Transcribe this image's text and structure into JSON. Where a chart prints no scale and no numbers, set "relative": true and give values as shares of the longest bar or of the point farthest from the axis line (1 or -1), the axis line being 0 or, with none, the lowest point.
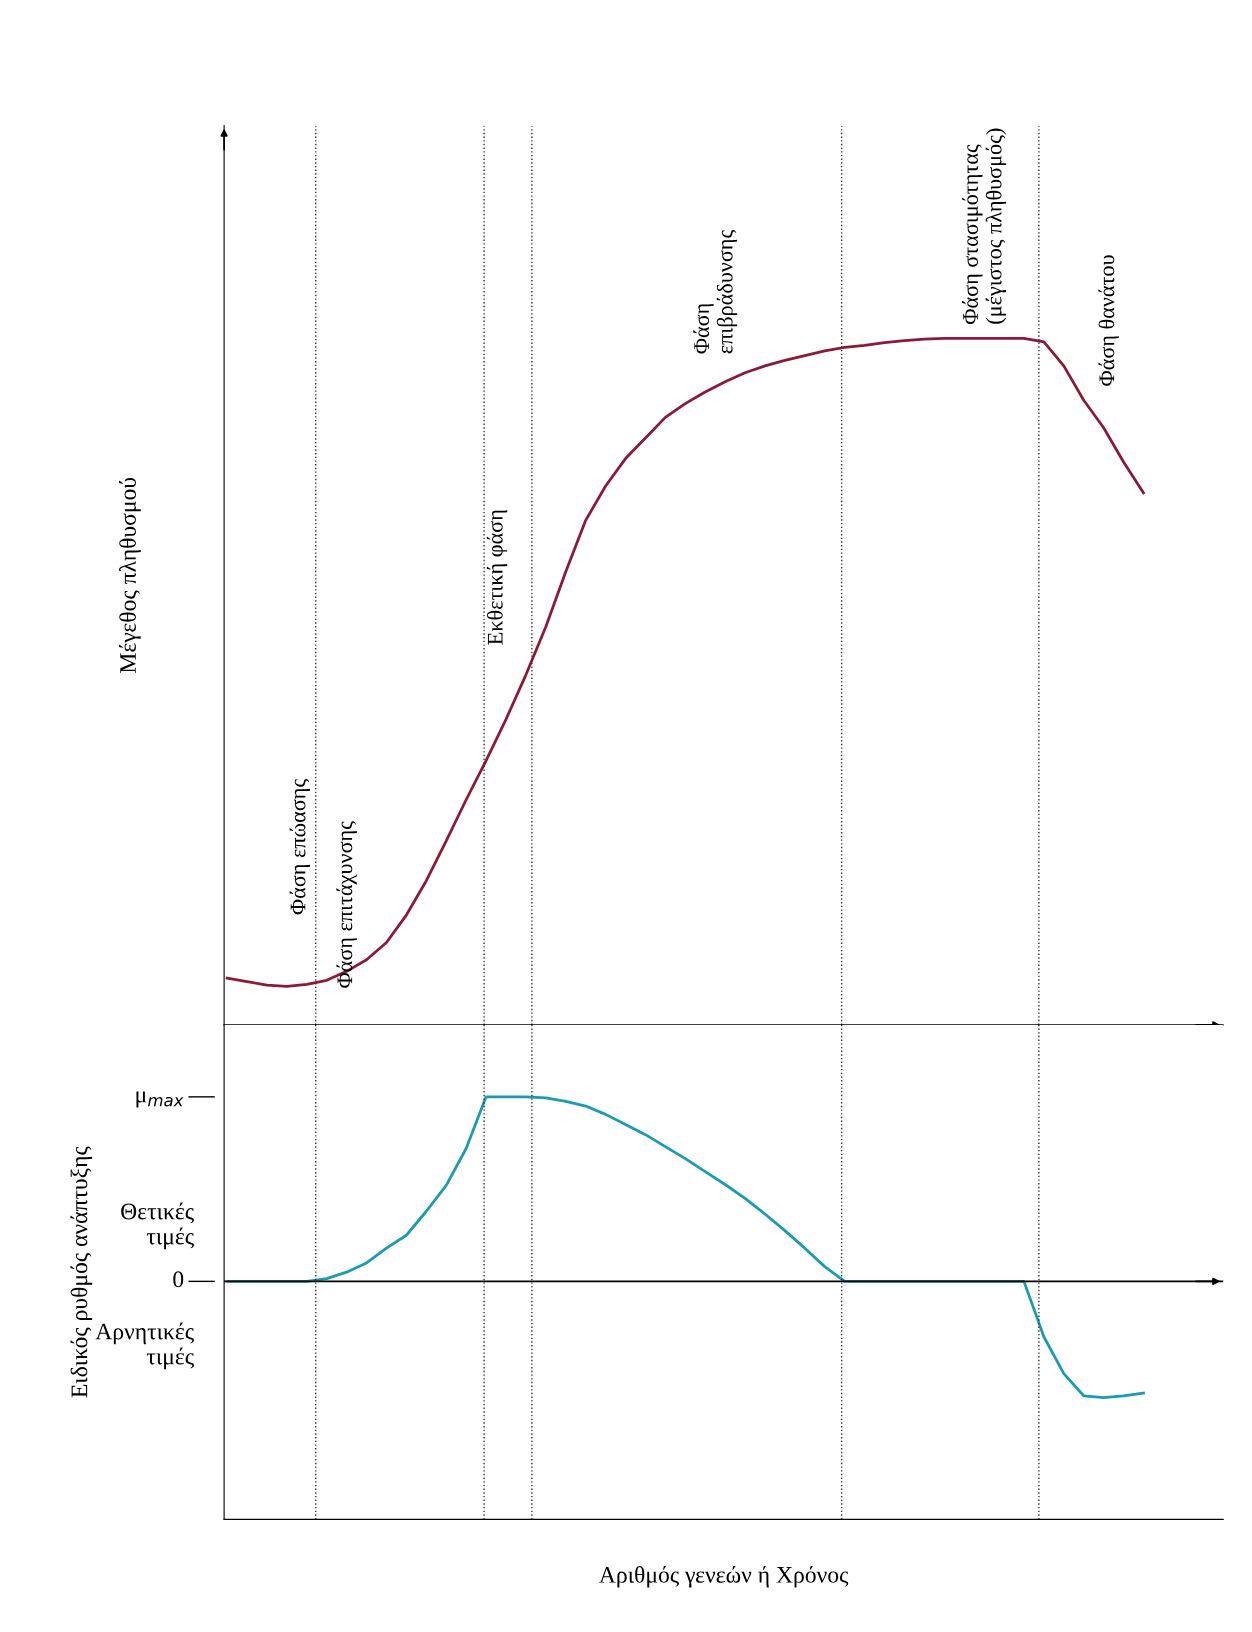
{
  "chart_data": [
    {
      "type": "line",
      "relative": true,
      "ylabel": "Μέγεθος πληθυσμού",
      "line_style": "solid",
      "marker": "none",
      "categories": [
        null,
        null,
        null,
        null,
        null,
        null,
        null,
        null,
        null,
        null,
        null,
        null,
        null,
        null,
        null,
        null,
        null,
        null,
        null,
        null,
        null,
        null,
        null,
        null,
        null,
        null,
        null,
        null,
        null,
        null,
        null,
        null,
        null,
        null,
        null,
        null,
        null,
        null,
        null,
        null,
        null,
        null,
        null,
        null,
        null,
        null,
        null
      ],
      "series": [
        {
          "color": "#8b1a3a",
          "values": [
            0.068,
            0.063,
            0.058,
            0.056,
            0.059,
            0.065,
            0.078,
            0.095,
            0.12,
            0.16,
            0.21,
            0.268,
            0.328,
            0.385,
            0.445,
            0.51,
            0.58,
            0.66,
            0.735,
            0.785,
            0.825,
            0.855,
            0.885,
            0.905,
            0.922,
            0.937,
            0.95,
            0.96,
            0.968,
            0.975,
            0.982,
            0.987,
            0.99,
            0.994,
            0.997,
            0.999,
            1.0,
            1.0,
            1.0,
            1.0,
            1.0,
            0.995,
            0.96,
            0.91,
            0.87,
            0.82,
            0.775
          ]
        }
      ],
      "annotations": [
        "Φάση επώασης",
        "Φάση επιτάχυνσης",
        "Εκθετική φάση",
        "Φάση\nεπιβράδυνσης",
        "Φάση στασιμότητας\n(μέγιστος πληθυσμός)",
        "Φάση θανάτου"
      ]
    },
    {
      "type": "line",
      "relative": true,
      "ylabel": "Ειδικός ρυθμός ανάπτυξης",
      "xlabel": "Αριθμός γενεών ή Χρόνος",
      "line_style": "solid",
      "marker": "none",
      "categories": [
        null,
        null,
        null,
        null,
        null,
        null,
        null,
        null,
        null,
        null,
        null,
        null,
        null,
        null,
        null,
        null,
        null,
        null,
        null,
        null,
        null,
        null,
        null,
        null,
        null,
        null,
        null,
        null,
        null,
        null,
        null,
        null,
        null,
        null,
        null,
        null,
        null,
        null,
        null,
        null,
        null,
        null,
        null,
        null,
        null,
        null,
        null
      ],
      "series": [
        {
          "color": "#1a9bb0",
          "values": [
            0,
            0,
            0,
            0,
            0,
            0.015,
            0.05,
            0.1,
            0.18,
            0.25,
            0.38,
            0.52,
            0.72,
            1.0,
            1.0,
            1.0,
            0.995,
            0.975,
            0.95,
            0.905,
            0.85,
            0.795,
            0.73,
            0.665,
            0.595,
            0.525,
            0.45,
            0.365,
            0.275,
            0.18,
            0.08,
            0,
            0,
            0,
            0,
            0,
            0,
            0,
            0,
            0,
            0,
            -0.3,
            -0.5,
            -0.62,
            -0.63,
            -0.62,
            -0.605
          ]
        }
      ],
      "annotations": [
        "μ$_{max}$",
        "0",
        "Θετικές\nτιμές",
        "Αρνητικές\nτιμές"
      ]
    }
  ]
}
